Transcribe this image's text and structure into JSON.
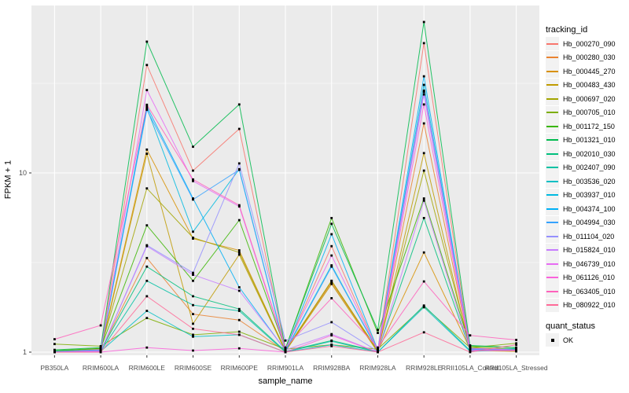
{
  "chart_data": {
    "type": "line",
    "title": "",
    "xlabel": "sample_name",
    "ylabel": "FPKM + 1",
    "y_scale": "log10",
    "ylim": [
      1,
      85
    ],
    "grid": true,
    "legend_position": "right",
    "y_major_breaks": [
      {
        "label": "1",
        "value": 1
      },
      {
        "label": "10",
        "value": 10
      }
    ],
    "y_minor_breaks": [
      3.1623,
      31.6228
    ],
    "categories": [
      "PB350LA",
      "RRIM600LA",
      "RRIM600LE",
      "RRIM600SE",
      "RRIM600PE",
      "RRIM901LA",
      "RRIM928BA",
      "RRIM928LA",
      "RRIM928LE",
      "RRII105LA_Control",
      "RRII105LA_Stressed"
    ],
    "color_legend_title": "tracking_id",
    "shape_legend_title": "quant_status",
    "shape_legend_entries": [
      {
        "label": "OK",
        "shape": "black-square"
      }
    ],
    "point_color": "#000000",
    "panel_bg": "#EBEBEB",
    "grid_color": "#FFFFFF",
    "axis_text_color": "#4D4D4D",
    "series": [
      {
        "name": "Hb_000270_090",
        "color": "#F8766D",
        "quant_status": "OK",
        "values": [
          1.0,
          1.04,
          40.0,
          10.3,
          17.6,
          1.03,
          3.9,
          1.02,
          53.0,
          1.05,
          1.02
        ]
      },
      {
        "name": "Hb_000280_030",
        "color": "#EA8331",
        "quant_status": "OK",
        "values": [
          1.0,
          1.02,
          3.35,
          1.63,
          1.51,
          1.01,
          2.45,
          1.01,
          18.9,
          1.03,
          1.01
        ]
      },
      {
        "name": "Hb_000445_270",
        "color": "#D89000",
        "quant_status": "OK",
        "values": [
          1.0,
          1.03,
          13.5,
          4.3,
          3.7,
          1.02,
          2.5,
          1.01,
          3.6,
          1.04,
          1.02
        ]
      },
      {
        "name": "Hb_000483_430",
        "color": "#C09B00",
        "quant_status": "OK",
        "values": [
          1.0,
          1.02,
          12.8,
          1.44,
          3.5,
          1.01,
          2.4,
          1.0,
          12.9,
          1.02,
          1.01
        ]
      },
      {
        "name": "Hb_000697_020",
        "color": "#A3A500",
        "quant_status": "OK",
        "values": [
          1.01,
          1.05,
          8.2,
          4.35,
          3.6,
          1.02,
          2.5,
          1.02,
          10.3,
          1.06,
          1.04
        ]
      },
      {
        "name": "Hb_000705_010",
        "color": "#7CAE00",
        "quant_status": "OK",
        "values": [
          1.11,
          1.08,
          1.55,
          1.25,
          1.3,
          1.04,
          1.1,
          1.04,
          1.8,
          1.06,
          1.12
        ]
      },
      {
        "name": "Hb_001172_150",
        "color": "#39B600",
        "quant_status": "OK",
        "values": [
          1.02,
          1.05,
          5.1,
          2.5,
          5.45,
          1.04,
          5.6,
          1.28,
          7.2,
          1.08,
          1.06
        ]
      },
      {
        "name": "Hb_001321_010",
        "color": "#00BB4E",
        "quant_status": "OK",
        "values": [
          1.03,
          1.06,
          54.0,
          14.0,
          24.1,
          1.05,
          5.2,
          1.33,
          69.5,
          1.09,
          1.06
        ]
      },
      {
        "name": "Hb_002010_030",
        "color": "#00BF7D",
        "quant_status": "OK",
        "values": [
          1.0,
          1.02,
          3.0,
          2.05,
          1.74,
          1.01,
          1.16,
          1.01,
          5.6,
          1.03,
          1.04
        ]
      },
      {
        "name": "Hb_002407_090",
        "color": "#00C1A3",
        "quant_status": "OK",
        "values": [
          1.0,
          1.01,
          2.5,
          1.83,
          1.7,
          1.0,
          1.15,
          1.0,
          1.82,
          1.02,
          1.05
        ]
      },
      {
        "name": "Hb_003536_020",
        "color": "#00BFC4",
        "quant_status": "OK",
        "values": [
          1.0,
          1.01,
          1.7,
          1.22,
          1.25,
          1.0,
          1.1,
          1.0,
          1.78,
          1.01,
          1.03
        ]
      },
      {
        "name": "Hb_003937_010",
        "color": "#00BAE0",
        "quant_status": "OK",
        "values": [
          1.0,
          1.02,
          23.0,
          4.7,
          10.5,
          1.02,
          3.05,
          1.02,
          31.0,
          1.04,
          1.02
        ]
      },
      {
        "name": "Hb_004374_100",
        "color": "#00B0F6",
        "quant_status": "OK",
        "values": [
          1.01,
          1.03,
          23.5,
          7.2,
          2.3,
          1.02,
          4.55,
          1.03,
          34.6,
          1.05,
          1.03
        ]
      },
      {
        "name": "Hb_004994_030",
        "color": "#35A2FF",
        "quant_status": "OK",
        "values": [
          1.0,
          1.02,
          22.5,
          7.1,
          10.4,
          1.01,
          3.0,
          1.02,
          28.8,
          1.04,
          1.02
        ]
      },
      {
        "name": "Hb_011104_020",
        "color": "#9590FF",
        "quant_status": "OK",
        "values": [
          1.0,
          1.01,
          3.95,
          2.77,
          11.3,
          1.16,
          1.47,
          1.01,
          27.4,
          1.03,
          1.02
        ]
      },
      {
        "name": "Hb_015824_010",
        "color": "#C77CFF",
        "quant_status": "OK",
        "values": [
          1.0,
          1.01,
          3.9,
          2.7,
          2.2,
          1.03,
          1.26,
          1.0,
          7.0,
          1.03,
          1.02
        ]
      },
      {
        "name": "Hb_046739_010",
        "color": "#E76BF3",
        "quant_status": "OK",
        "values": [
          1.0,
          1.02,
          29.0,
          9.0,
          6.5,
          1.04,
          3.46,
          1.02,
          28.3,
          1.05,
          1.03
        ]
      },
      {
        "name": "Hb_061126_010",
        "color": "#FA62DB",
        "quant_status": "OK",
        "values": [
          1.0,
          1.0,
          1.06,
          1.02,
          1.05,
          1.0,
          1.24,
          1.0,
          24.1,
          1.02,
          1.02
        ]
      },
      {
        "name": "Hb_063405_010",
        "color": "#FF62BC",
        "quant_status": "OK",
        "values": [
          1.18,
          1.41,
          24.0,
          9.2,
          6.6,
          1.06,
          2.0,
          1.06,
          2.48,
          1.24,
          1.17
        ]
      },
      {
        "name": "Hb_080922_010",
        "color": "#FF6A98",
        "quant_status": "OK",
        "values": [
          1.0,
          1.0,
          2.05,
          1.35,
          1.25,
          1.0,
          1.08,
          1.0,
          1.29,
          1.0,
          1.1
        ]
      }
    ]
  }
}
